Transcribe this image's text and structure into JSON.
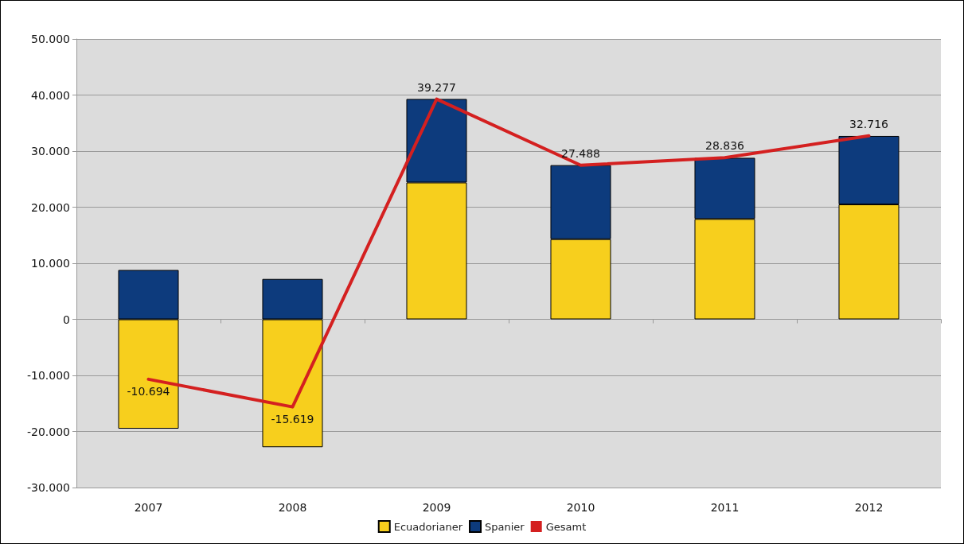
{
  "chart_data": {
    "type": "bar",
    "stacked": true,
    "categories": [
      "2007",
      "2008",
      "2009",
      "2010",
      "2011",
      "2012"
    ],
    "series": [
      {
        "name": "Ecuadorianer",
        "color": "#f7cf1d",
        "values": [
          -19500,
          -22800,
          24400,
          14300,
          17900,
          20500
        ]
      },
      {
        "name": "Spanier",
        "color": "#0d3b7d",
        "values": [
          8800,
          7200,
          14900,
          13200,
          10900,
          12200
        ]
      },
      {
        "name": "Gesamt",
        "type": "line",
        "color": "#d42020",
        "values": [
          -10694,
          -15619,
          39277,
          27488,
          28836,
          32716
        ],
        "value_labels": [
          "-10.694",
          "-15.619",
          "39.277",
          "27.488",
          "28.836",
          "32.716"
        ]
      }
    ],
    "ylim": [
      -30000,
      50000
    ],
    "yticks": [
      {
        "value": -30000,
        "label": "-30.000"
      },
      {
        "value": -20000,
        "label": "-20.000"
      },
      {
        "value": -10000,
        "label": "-10.000"
      },
      0,
      {
        "value": 10000,
        "label": "10.000"
      },
      {
        "value": 20000,
        "label": "20.000"
      },
      {
        "value": 30000,
        "label": "30.000"
      },
      {
        "value": 40000,
        "label": "40.000"
      },
      {
        "value": 50000,
        "label": "50.000"
      }
    ],
    "grid": "y",
    "legend": "bottom",
    "marker": "none",
    "line_style": "solid"
  }
}
